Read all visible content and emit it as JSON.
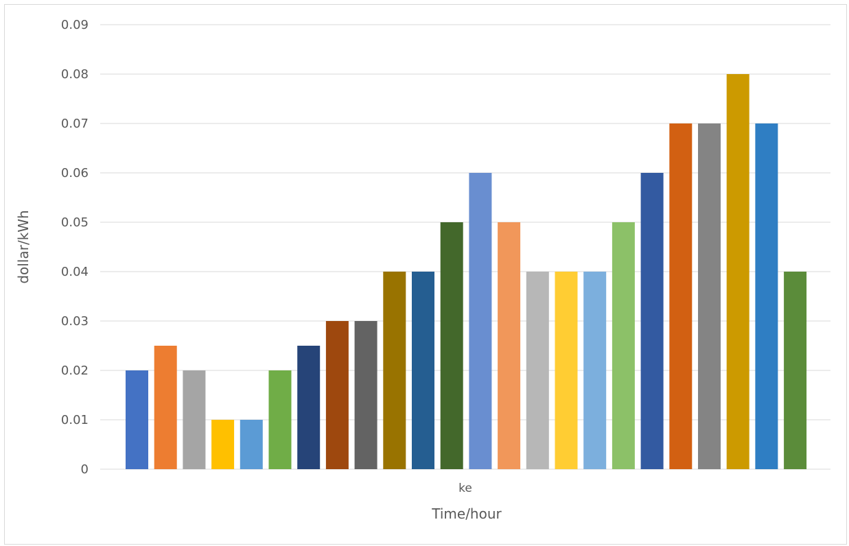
{
  "chart_data": {
    "type": "bar",
    "categories": [
      "ke"
    ],
    "xlabel": "Time/hour",
    "ylabel": "dollar/kWh",
    "ylim": [
      0,
      0.09
    ],
    "yticks": [
      "0",
      "0.01",
      "0.02",
      "0.03",
      "0.04",
      "0.05",
      "0.06",
      "0.07",
      "0.08",
      "0.09"
    ],
    "grid": true,
    "legend": "none",
    "series": [
      {
        "values": [
          0.02
        ],
        "color": "#4472C4"
      },
      {
        "values": [
          0.025
        ],
        "color": "#ED7D31"
      },
      {
        "values": [
          0.02
        ],
        "color": "#A5A5A5"
      },
      {
        "values": [
          0.01
        ],
        "color": "#FFC000"
      },
      {
        "values": [
          0.01
        ],
        "color": "#5B9BD5"
      },
      {
        "values": [
          0.02
        ],
        "color": "#70AD47"
      },
      {
        "values": [
          0.025
        ],
        "color": "#264478"
      },
      {
        "values": [
          0.03
        ],
        "color": "#9E480E"
      },
      {
        "values": [
          0.03
        ],
        "color": "#636363"
      },
      {
        "values": [
          0.04
        ],
        "color": "#997300"
      },
      {
        "values": [
          0.04
        ],
        "color": "#255E91"
      },
      {
        "values": [
          0.05
        ],
        "color": "#43682B"
      },
      {
        "values": [
          0.06
        ],
        "color": "#698ED0"
      },
      {
        "values": [
          0.05
        ],
        "color": "#F1975A"
      },
      {
        "values": [
          0.04
        ],
        "color": "#B7B7B7"
      },
      {
        "values": [
          0.04
        ],
        "color": "#FFCD33"
      },
      {
        "values": [
          0.04
        ],
        "color": "#7CAFDD"
      },
      {
        "values": [
          0.05
        ],
        "color": "#8CC168"
      },
      {
        "values": [
          0.06
        ],
        "color": "#335AA1"
      },
      {
        "values": [
          0.07
        ],
        "color": "#D26012"
      },
      {
        "values": [
          0.07
        ],
        "color": "#848484"
      },
      {
        "values": [
          0.08
        ],
        "color": "#CC9A00"
      },
      {
        "values": [
          0.07
        ],
        "color": "#2F7EC3"
      },
      {
        "values": [
          0.04
        ],
        "color": "#5B8C3A"
      }
    ]
  }
}
